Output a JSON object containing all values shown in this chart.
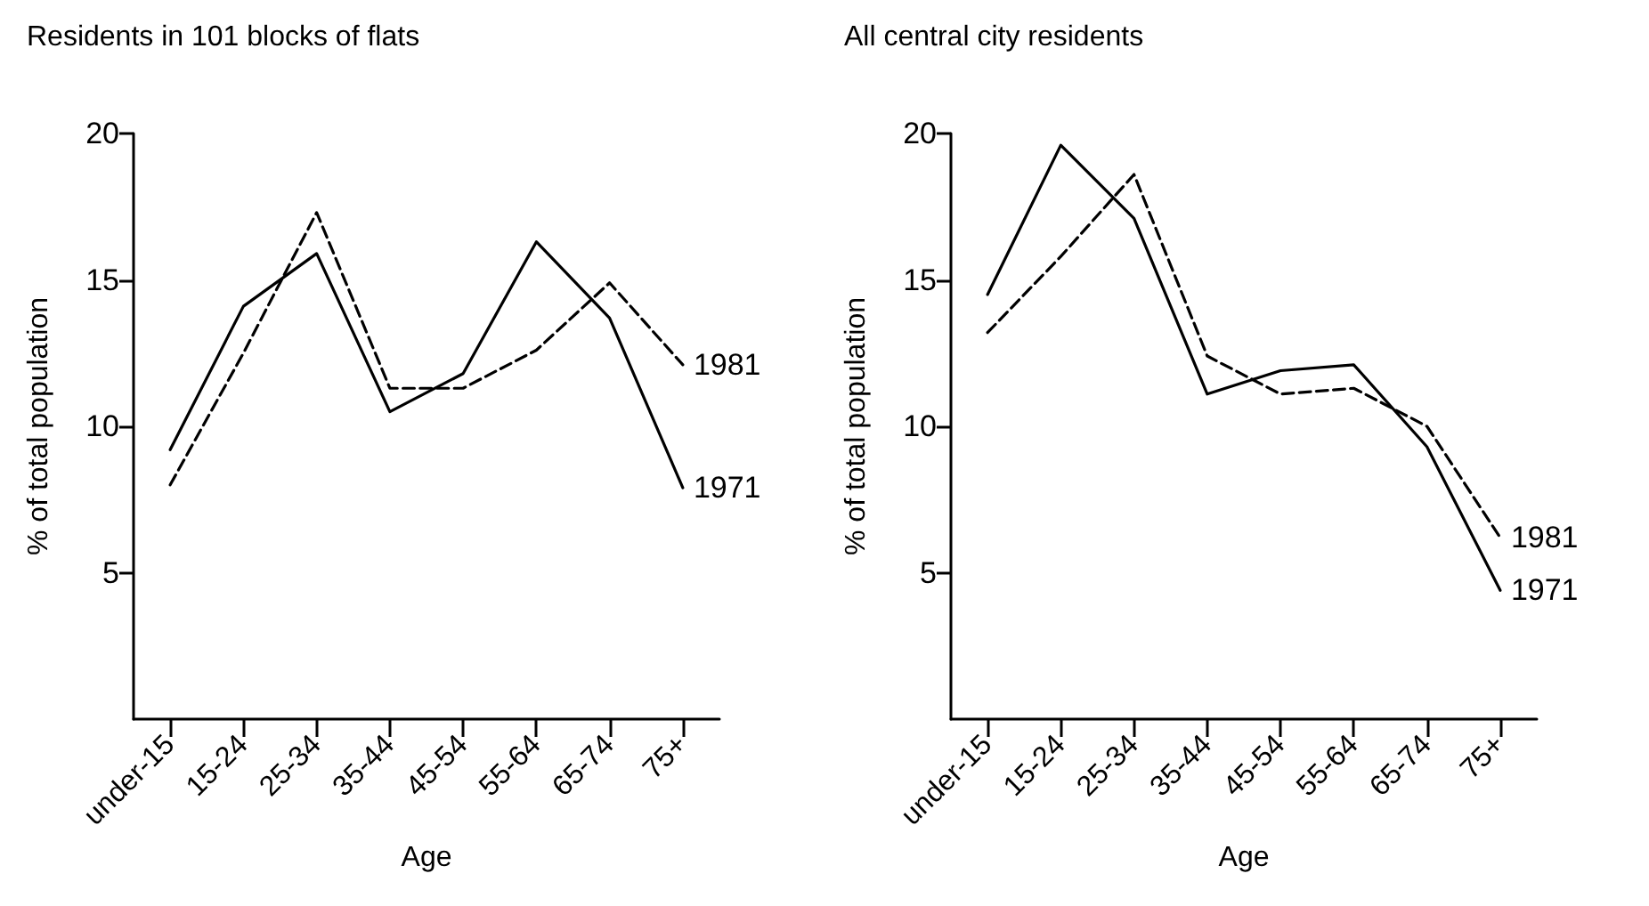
{
  "chart_data": [
    {
      "type": "line",
      "title": "Residents in 101 blocks of flats",
      "xlabel": "Age",
      "ylabel": "% of total population",
      "categories": [
        "under-15",
        "15-24",
        "25-34",
        "35-44",
        "45-54",
        "55-64",
        "65-74",
        "75+"
      ],
      "ylim": [
        0,
        20
      ],
      "yticks": [
        5,
        10,
        15,
        20
      ],
      "grid": false,
      "marker": "none",
      "series": [
        {
          "name": "1981",
          "color": "#000000",
          "line_style": "dashed",
          "values": [
            8.0,
            12.5,
            17.3,
            11.3,
            11.3,
            12.6,
            14.9,
            12.1
          ]
        },
        {
          "name": "1971",
          "color": "#000000",
          "line_style": "solid",
          "values": [
            9.2,
            14.1,
            15.9,
            10.5,
            11.8,
            16.3,
            13.7,
            7.9
          ]
        }
      ]
    },
    {
      "type": "line",
      "title": "All central city residents",
      "xlabel": "Age",
      "ylabel": "% of total population",
      "categories": [
        "under-15",
        "15-24",
        "25-34",
        "35-44",
        "45-54",
        "55-64",
        "65-74",
        "75+"
      ],
      "ylim": [
        0,
        20
      ],
      "yticks": [
        5,
        10,
        15,
        20
      ],
      "grid": false,
      "marker": "none",
      "series": [
        {
          "name": "1981",
          "color": "#000000",
          "line_style": "dashed",
          "values": [
            13.2,
            15.8,
            18.6,
            12.4,
            11.1,
            11.3,
            10.0,
            6.2
          ]
        },
        {
          "name": "1971",
          "color": "#000000",
          "line_style": "solid",
          "values": [
            14.5,
            19.6,
            17.1,
            11.1,
            11.9,
            12.1,
            9.3,
            4.4
          ]
        }
      ]
    }
  ]
}
